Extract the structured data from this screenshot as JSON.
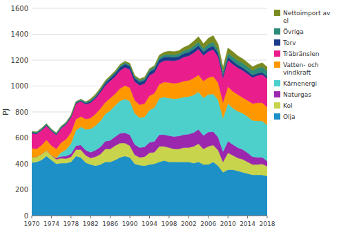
{
  "chart_data": {
    "type": "area",
    "stacked": true,
    "grid": true,
    "legend": "right",
    "ylabel": "PJ",
    "x": [
      1970,
      1971,
      1972,
      1973,
      1974,
      1975,
      1976,
      1977,
      1978,
      1979,
      1980,
      1981,
      1982,
      1983,
      1984,
      1985,
      1986,
      1987,
      1988,
      1989,
      1990,
      1991,
      1992,
      1993,
      1994,
      1995,
      1996,
      1997,
      1998,
      1999,
      2000,
      2001,
      2002,
      2003,
      2004,
      2005,
      2006,
      2007,
      2008,
      2009,
      2010,
      2011,
      2012,
      2013,
      2014,
      2015,
      2016,
      2017,
      2018
    ],
    "xlim": [
      1970,
      2018
    ],
    "xticks": [
      1970,
      1974,
      1978,
      1982,
      1986,
      1990,
      1994,
      1998,
      2002,
      2006,
      2010,
      2014,
      2018
    ],
    "ylim": [
      0,
      1600
    ],
    "yticks": [
      0,
      200,
      400,
      600,
      800,
      1000,
      1200,
      1400,
      1600
    ],
    "series": [
      {
        "name": "Olja",
        "color": "#1e90c8",
        "values": [
          410,
          415,
          430,
          460,
          430,
          400,
          405,
          405,
          415,
          460,
          450,
          410,
          395,
          385,
          395,
          415,
          415,
          430,
          450,
          460,
          450,
          400,
          390,
          385,
          395,
          400,
          415,
          425,
          415,
          415,
          415,
          415,
          415,
          405,
          415,
          395,
          395,
          415,
          385,
          335,
          355,
          355,
          345,
          335,
          325,
          315,
          315,
          315,
          305
        ]
      },
      {
        "name": "Kol",
        "color": "#c8d44c",
        "values": [
          40,
          40,
          44,
          44,
          36,
          35,
          38,
          35,
          38,
          50,
          60,
          55,
          50,
          70,
          80,
          100,
          100,
          110,
          110,
          100,
          90,
          70,
          60,
          70,
          90,
          90,
          120,
          110,
          110,
          100,
          100,
          110,
          110,
          130,
          140,
          120,
          140,
          130,
          120,
          80,
          130,
          110,
          100,
          100,
          90,
          80,
          80,
          84,
          76
        ]
      },
      {
        "name": "Naturgas",
        "color": "#9b27af",
        "values": [
          0,
          0,
          0,
          0,
          0,
          10,
          15,
          20,
          25,
          30,
          35,
          40,
          44,
          50,
          56,
          60,
          66,
          70,
          76,
          80,
          84,
          80,
          76,
          76,
          80,
          84,
          90,
          90,
          92,
          96,
          100,
          100,
          104,
          106,
          110,
          104,
          110,
          104,
          100,
          80,
          90,
          84,
          80,
          76,
          70,
          60,
          56,
          52,
          40
        ]
      },
      {
        "name": "Kärnenergi",
        "color": "#4dd0cc",
        "values": [
          0,
          0,
          0,
          0,
          0,
          0,
          30,
          50,
          80,
          120,
          140,
          160,
          180,
          190,
          200,
          210,
          230,
          240,
          250,
          260,
          260,
          240,
          230,
          230,
          250,
          260,
          280,
          290,
          290,
          290,
          290,
          290,
          290,
          290,
          290,
          290,
          290,
          290,
          290,
          260,
          290,
          280,
          280,
          280,
          280,
          280,
          280,
          280,
          280
        ]
      },
      {
        "name": "Vatten- och\nvindkraft",
        "color": "#ff9800",
        "values": [
          70,
          60,
          70,
          80,
          76,
          70,
          76,
          80,
          84,
          84,
          80,
          80,
          84,
          90,
          96,
          90,
          96,
          90,
          96,
          104,
          104,
          100,
          100,
          104,
          110,
          110,
          110,
          116,
          120,
          120,
          120,
          124,
          124,
          130,
          130,
          130,
          130,
          136,
          130,
          120,
          130,
          130,
          130,
          120,
          124,
          130,
          140,
          140,
          136
        ]
      },
      {
        "name": "Träbränslen",
        "color": "#e91e8c",
        "values": [
          115,
          115,
          115,
          110,
          110,
          108,
          110,
          115,
          118,
          120,
          118,
          115,
          118,
          120,
          125,
          130,
          133,
          135,
          138,
          140,
          140,
          145,
          150,
          155,
          158,
          160,
          162,
          165,
          170,
          174,
          178,
          185,
          190,
          195,
          200,
          198,
          202,
          208,
          202,
          190,
          205,
          210,
          206,
          210,
          206,
          202,
          210,
          218,
          222
        ]
      },
      {
        "name": "Torv",
        "color": "#1a3a8a",
        "values": [
          5,
          5,
          5,
          5,
          5,
          5,
          5,
          5,
          5,
          5,
          5,
          8,
          10,
          12,
          15,
          18,
          20,
          22,
          25,
          26,
          26,
          25,
          25,
          25,
          26,
          27,
          28,
          28,
          28,
          27,
          26,
          27,
          28,
          28,
          28,
          26,
          28,
          27,
          26,
          22,
          25,
          24,
          23,
          22,
          20,
          18,
          18,
          17,
          15
        ]
      },
      {
        "name": "Övriga",
        "color": "#2e8b7a",
        "values": [
          10,
          10,
          10,
          10,
          10,
          10,
          10,
          10,
          10,
          10,
          10,
          10,
          10,
          10,
          10,
          10,
          10,
          10,
          12,
          12,
          12,
          12,
          14,
          14,
          16,
          16,
          18,
          18,
          20,
          20,
          20,
          24,
          24,
          26,
          28,
          28,
          30,
          30,
          30,
          28,
          30,
          32,
          34,
          36,
          36,
          36,
          40,
          44,
          44
        ]
      },
      {
        "name": "Nettoimport av\nel",
        "color": "#7a8a20",
        "values": [
          0,
          0,
          0,
          0,
          0,
          0,
          0,
          0,
          0,
          0,
          0,
          0,
          10,
          10,
          10,
          10,
          10,
          10,
          10,
          10,
          10,
          10,
          10,
          10,
          10,
          10,
          16,
          20,
          24,
          24,
          24,
          24,
          30,
          36,
          40,
          36,
          44,
          50,
          40,
          30,
          40,
          40,
          36,
          32,
          30,
          28,
          28,
          30,
          28
        ]
      }
    ]
  }
}
